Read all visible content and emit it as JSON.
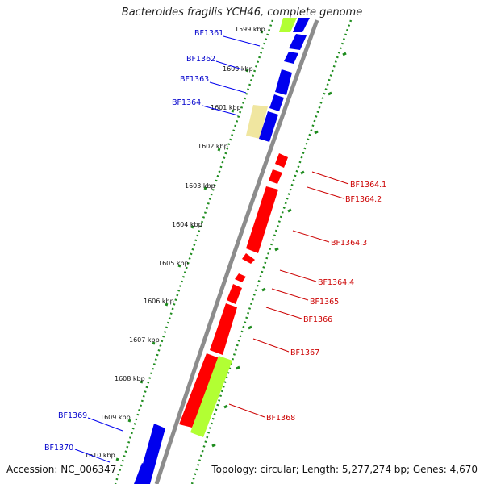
{
  "title": "Bacteroides fragilis YCH46, complete genome",
  "accession": "Accession: NC_006347",
  "summary": "Topology: circular; Length: 5,277,274 bp; Genes: 4,670",
  "colors": {
    "backbone": "#8c8c8c",
    "tick": "#1e8c1e",
    "forward_gene": "#0000ee",
    "reverse_gene": "#ff0000",
    "forward_label": "#0000cc",
    "reverse_label": "#cc0000",
    "highlight_gene": "#b2ff33",
    "pseudo_gene": "#f0e6a0"
  },
  "kbp_ticks": [
    "1599 kbp",
    "1600 kbp",
    "1601 kbp",
    "1602 kbp",
    "1603 kbp",
    "1604 kbp",
    "1605 kbp",
    "1606 kbp",
    "1607 kbp",
    "1608 kbp",
    "1609 kbp",
    "1610 kbp"
  ],
  "forward_labels": [
    "BF1361",
    "BF1362",
    "BF1363",
    "BF1364",
    "BF1369",
    "BF1370"
  ],
  "reverse_labels": [
    "BF1364.1",
    "BF1364.2",
    "BF1364.3",
    "BF1364.4",
    "BF1365",
    "BF1366",
    "BF1367",
    "BF1368"
  ]
}
